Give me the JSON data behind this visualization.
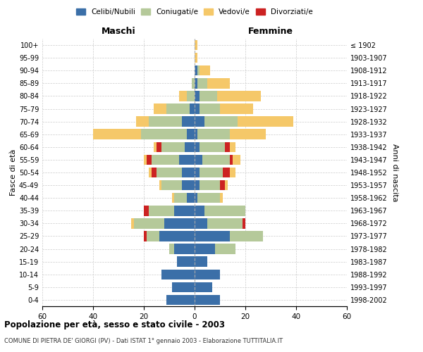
{
  "age_groups": [
    "0-4",
    "5-9",
    "10-14",
    "15-19",
    "20-24",
    "25-29",
    "30-34",
    "35-39",
    "40-44",
    "45-49",
    "50-54",
    "55-59",
    "60-64",
    "65-69",
    "70-74",
    "75-79",
    "80-84",
    "85-89",
    "90-94",
    "95-99",
    "100+"
  ],
  "birth_years": [
    "1998-2002",
    "1993-1997",
    "1988-1992",
    "1983-1987",
    "1978-1982",
    "1973-1977",
    "1968-1972",
    "1963-1967",
    "1958-1962",
    "1953-1957",
    "1948-1952",
    "1943-1947",
    "1938-1942",
    "1933-1937",
    "1928-1932",
    "1923-1927",
    "1918-1922",
    "1913-1917",
    "1908-1912",
    "1903-1907",
    "≤ 1902"
  ],
  "males": {
    "celibi": [
      11,
      9,
      13,
      7,
      8,
      14,
      12,
      8,
      3,
      5,
      5,
      6,
      4,
      3,
      5,
      2,
      0,
      0,
      0,
      0,
      0
    ],
    "coniugati": [
      0,
      0,
      0,
      0,
      2,
      5,
      12,
      10,
      5,
      8,
      10,
      11,
      9,
      18,
      13,
      9,
      3,
      1,
      0,
      0,
      0
    ],
    "vedovi": [
      0,
      0,
      0,
      0,
      0,
      0,
      1,
      0,
      1,
      1,
      1,
      1,
      1,
      19,
      5,
      5,
      3,
      0,
      0,
      0,
      0
    ],
    "divorziati": [
      0,
      0,
      0,
      0,
      0,
      1,
      0,
      2,
      0,
      0,
      2,
      2,
      2,
      0,
      0,
      0,
      0,
      0,
      0,
      0,
      0
    ]
  },
  "females": {
    "nubili": [
      10,
      7,
      10,
      5,
      8,
      14,
      5,
      4,
      1,
      2,
      2,
      3,
      2,
      1,
      4,
      2,
      2,
      1,
      1,
      0,
      0
    ],
    "coniugate": [
      0,
      0,
      0,
      0,
      8,
      13,
      14,
      16,
      9,
      8,
      9,
      11,
      10,
      13,
      13,
      8,
      7,
      4,
      1,
      0,
      0
    ],
    "vedove": [
      0,
      0,
      0,
      0,
      0,
      0,
      0,
      0,
      1,
      1,
      2,
      3,
      2,
      14,
      22,
      13,
      17,
      9,
      4,
      1,
      1
    ],
    "divorziate": [
      0,
      0,
      0,
      0,
      0,
      0,
      1,
      0,
      0,
      2,
      3,
      1,
      2,
      0,
      0,
      0,
      0,
      0,
      0,
      0,
      0
    ]
  },
  "colors": {
    "celibi": "#3B6FA8",
    "coniugati": "#B5C99A",
    "vedovi": "#F5C869",
    "divorziati": "#CC2222"
  },
  "title": "Popolazione per età, sesso e stato civile - 2003",
  "subtitle": "COMUNE DI PIETRA DE' GIORGI (PV) - Dati ISTAT 1° gennaio 2003 - Elaborazione TUTTITALIA.IT",
  "xlabel_left": "Maschi",
  "xlabel_right": "Femmine",
  "ylabel_left": "Fasce di età",
  "ylabel_right": "Anni di nascita",
  "xlim": 60,
  "legend_labels": [
    "Celibi/Nubili",
    "Coniugati/e",
    "Vedovi/e",
    "Divorziati/e"
  ]
}
